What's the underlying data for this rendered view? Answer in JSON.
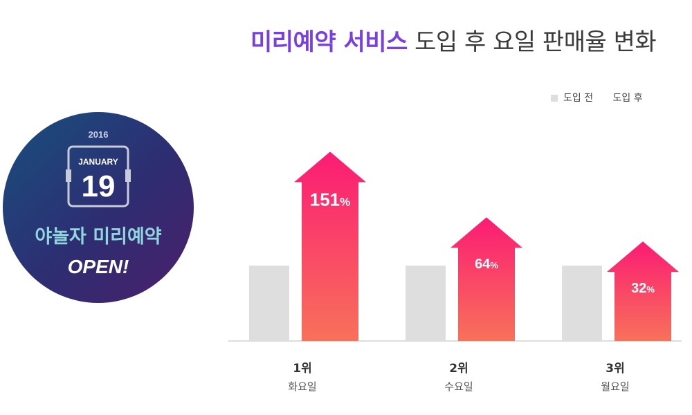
{
  "title": {
    "accent": "미리예약 서비스",
    "rest": "도입 후 요일 판매율 변화"
  },
  "legend": {
    "before": "도입 전",
    "after": "도입 후"
  },
  "badge": {
    "year": "2016",
    "month": "JANUARY",
    "day": "19",
    "headline": "야놀자 미리예약",
    "open": "OPEN!"
  },
  "colors": {
    "accent": "#7a3fe0",
    "before_bar": "#dedede",
    "arrow_top": "#fb1b74",
    "arrow_bottom": "#f8715a"
  },
  "chart_data": {
    "type": "bar",
    "title": "미리예약 서비스 도입 후 요일 판매율 변화",
    "categories": [
      {
        "rank": "1위",
        "day": "화요일"
      },
      {
        "rank": "2위",
        "day": "수요일"
      },
      {
        "rank": "3위",
        "day": "월요일"
      }
    ],
    "series": [
      {
        "name": "도입 전",
        "values": [
          100,
          100,
          100
        ]
      },
      {
        "name": "도입 후",
        "values": [
          251,
          164,
          132
        ]
      }
    ],
    "increase_labels": [
      "151%",
      "64%",
      "32%"
    ],
    "legend": "top-right",
    "grid": false
  }
}
